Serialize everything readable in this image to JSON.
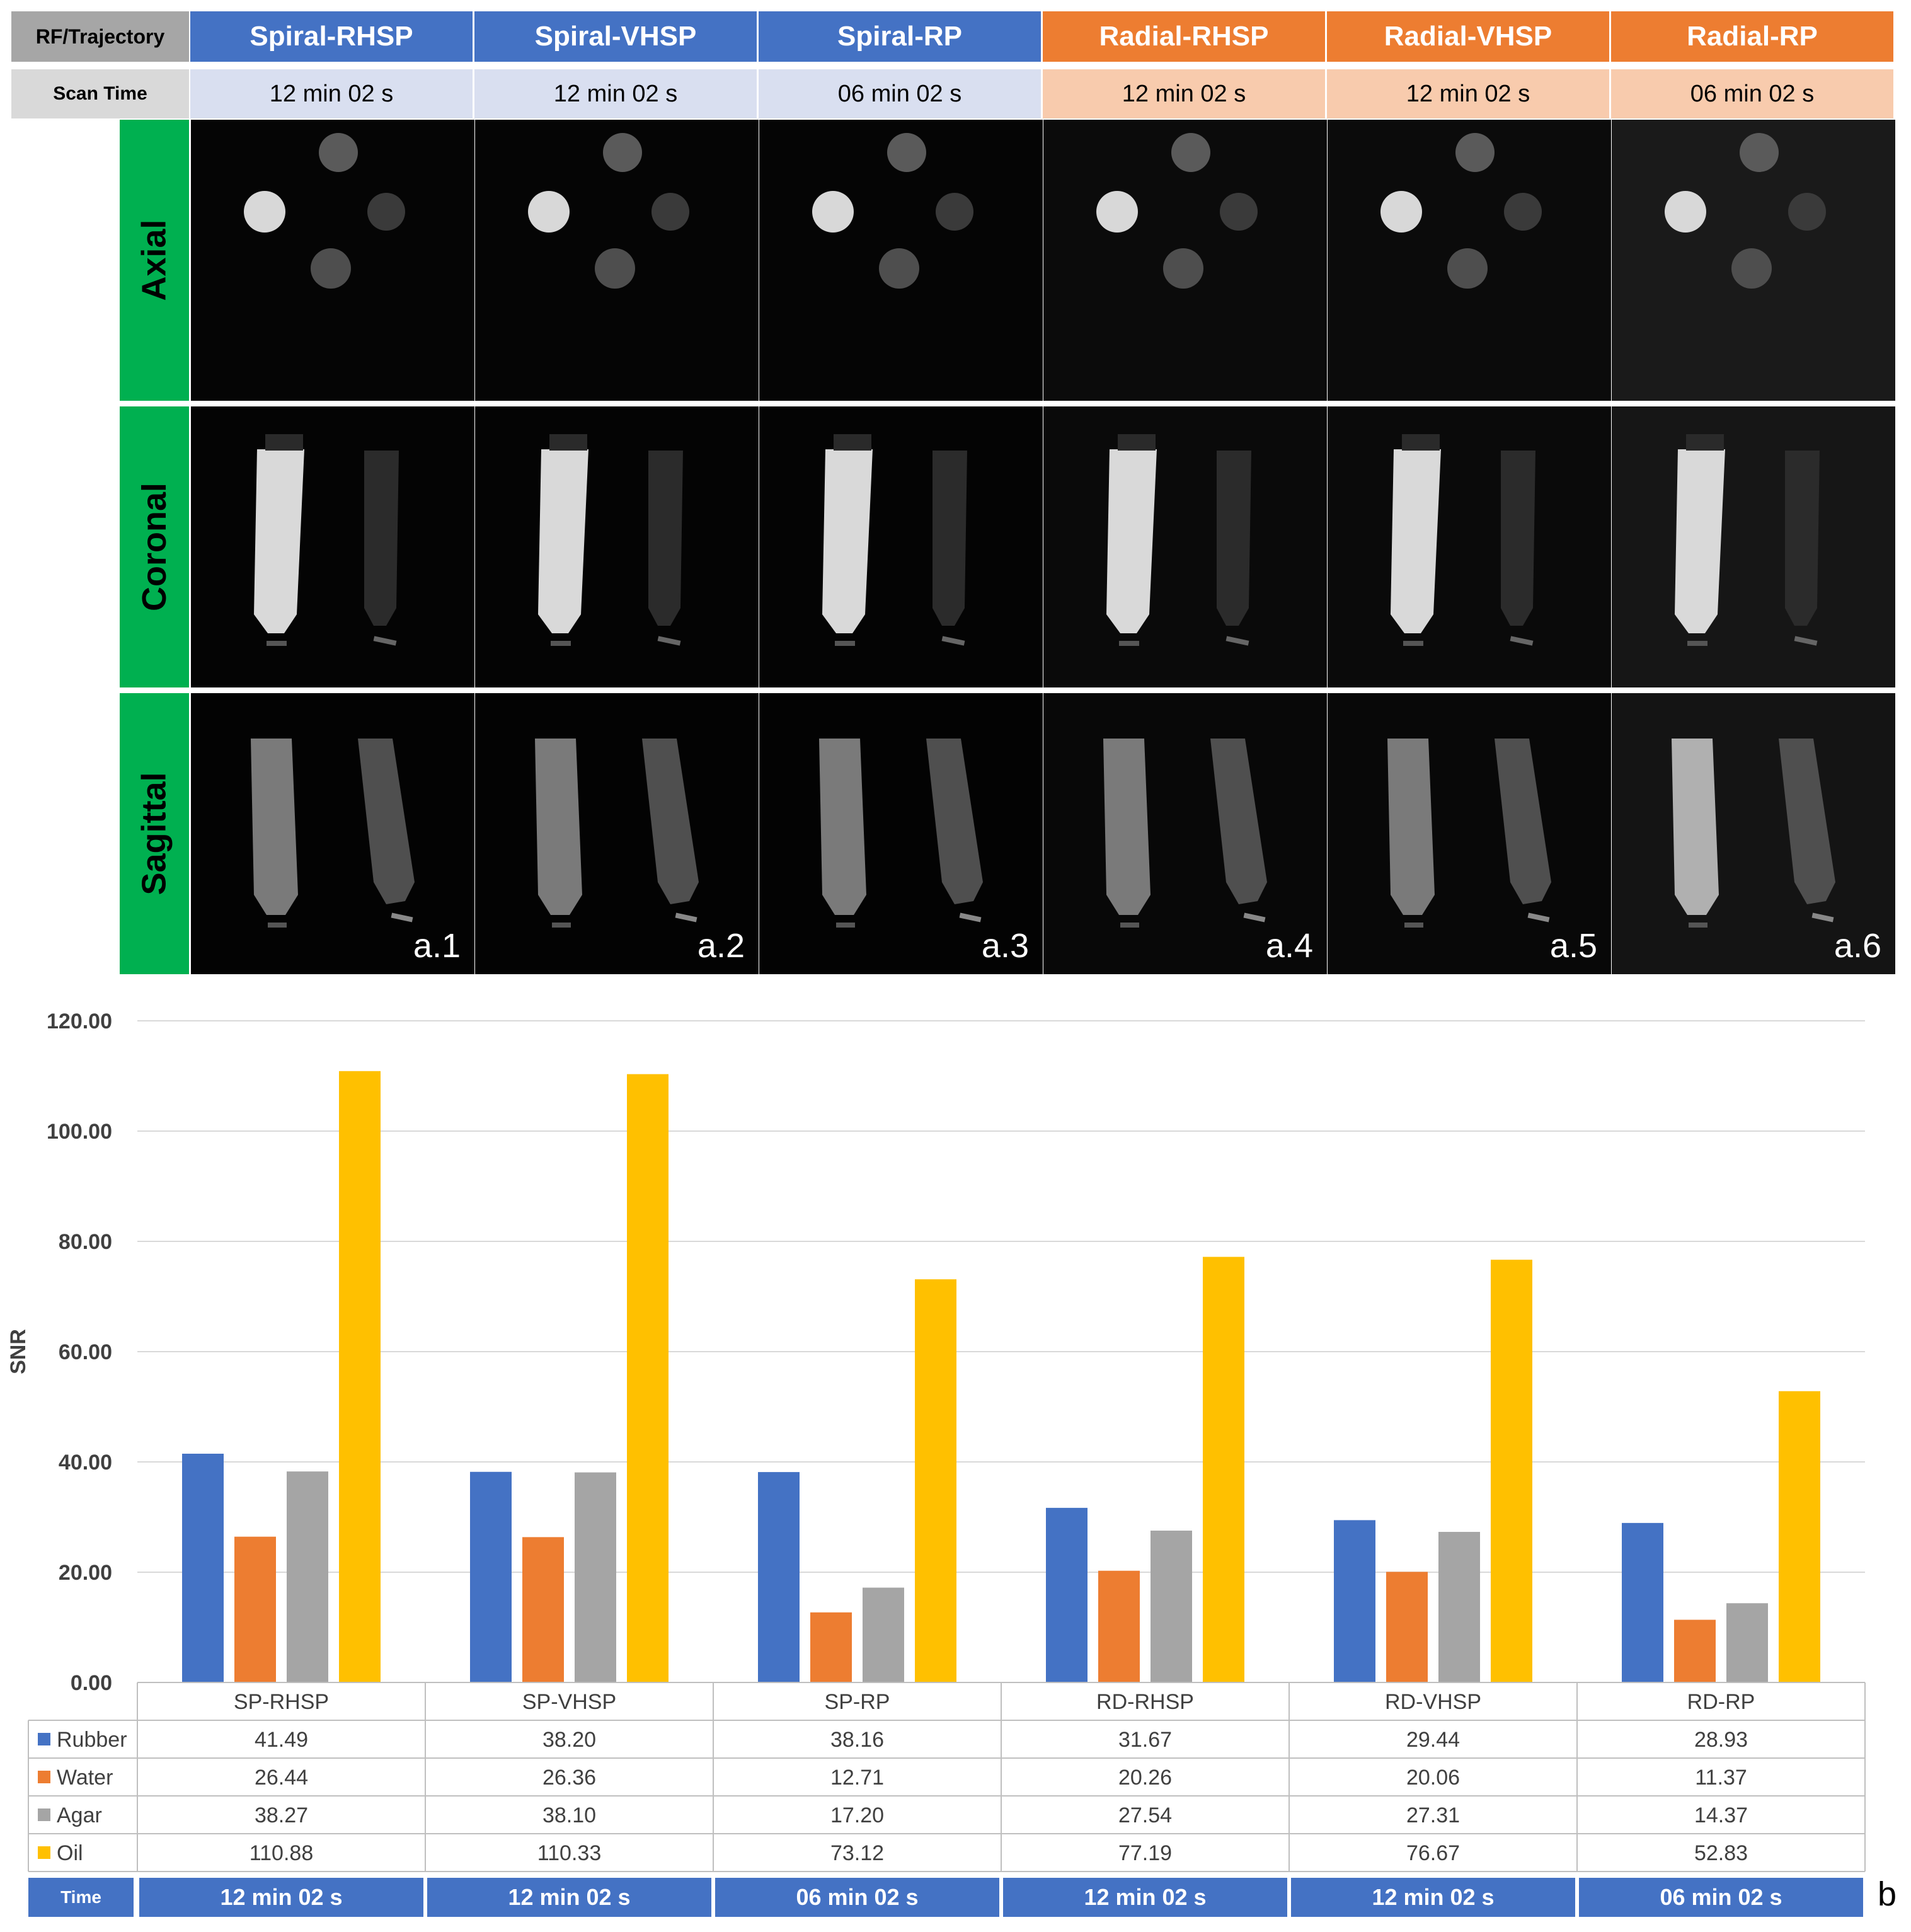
{
  "header": {
    "trajectory_label": "RF/Trajectory",
    "scan_time_label": "Scan Time",
    "columns": [
      {
        "name": "Spiral-RHSP",
        "scan_time": "12 min 02 s",
        "group": "spiral"
      },
      {
        "name": "Spiral-VHSP",
        "scan_time": "12 min 02 s",
        "group": "spiral"
      },
      {
        "name": "Spiral-RP",
        "scan_time": "06 min 02 s",
        "group": "spiral"
      },
      {
        "name": "Radial-RHSP",
        "scan_time": "12 min 02 s",
        "group": "radial"
      },
      {
        "name": "Radial-VHSP",
        "scan_time": "12 min 02 s",
        "group": "radial"
      },
      {
        "name": "Radial-RP",
        "scan_time": "06 min 02 s",
        "group": "radial"
      }
    ],
    "colors": {
      "spiral_header": "#4472c4",
      "spiral_time": "#d9dff0",
      "radial_header": "#ed7d31",
      "radial_time": "#f8cbad",
      "label_header": "#a6a6a6",
      "label_time": "#d9d9d9",
      "view_label": "#00b050"
    }
  },
  "views": [
    "Axial",
    "Coronal",
    "Sagittal"
  ],
  "image_ids": [
    "a.1",
    "a.2",
    "a.3",
    "a.4",
    "a.5",
    "a.6"
  ],
  "chart_data": {
    "type": "bar",
    "ylabel": "SNR",
    "ylim": [
      0,
      120
    ],
    "yticks": [
      "0.00",
      "20.00",
      "40.00",
      "60.00",
      "80.00",
      "100.00",
      "120.00"
    ],
    "categories": [
      "SP-RHSP",
      "SP-VHSP",
      "SP-RP",
      "RD-RHSP",
      "RD-VHSP",
      "RD-RP"
    ],
    "series": [
      {
        "name": "Rubber",
        "color": "#4472c4",
        "values": [
          41.49,
          38.2,
          38.16,
          31.67,
          29.44,
          28.93
        ],
        "labels": [
          "41.49",
          "38.20",
          "38.16",
          "31.67",
          "29.44",
          "28.93"
        ]
      },
      {
        "name": "Water",
        "color": "#ed7d31",
        "values": [
          26.44,
          26.36,
          12.71,
          20.26,
          20.06,
          11.37
        ],
        "labels": [
          "26.44",
          "26.36",
          "12.71",
          "20.26",
          "20.06",
          "11.37"
        ]
      },
      {
        "name": "Agar",
        "color": "#a5a5a5",
        "values": [
          38.27,
          38.1,
          17.2,
          27.54,
          27.31,
          14.37
        ],
        "labels": [
          "38.27",
          "38.10",
          "17.20",
          "27.54",
          "27.31",
          "14.37"
        ]
      },
      {
        "name": "Oil",
        "color": "#ffc000",
        "values": [
          110.88,
          110.33,
          73.12,
          77.19,
          76.67,
          52.83
        ],
        "labels": [
          "110.88",
          "110.33",
          "73.12",
          "77.19",
          "76.67",
          "52.83"
        ]
      }
    ],
    "grid": true,
    "legend": "data table",
    "time_row": {
      "label": "Time",
      "values": [
        "12 min 02 s",
        "12 min 02 s",
        "06 min 02 s",
        "12 min 02 s",
        "12 min 02 s",
        "06 min 02 s"
      ]
    }
  },
  "panel_labels": {
    "b": "b"
  }
}
